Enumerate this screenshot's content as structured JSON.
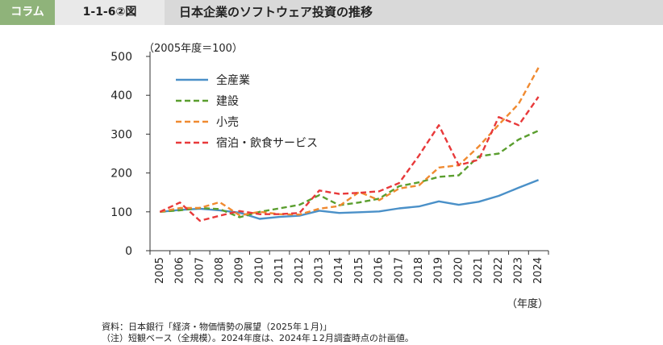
{
  "header": {
    "tag": "コラム",
    "figure_number": "1-1-6②図",
    "title": "日本企業のソフトウェア投資の推移"
  },
  "notes": {
    "source": "資料：日本銀行「経済・物価情勢の展望（2025年１月)」",
    "note": "（注）短観ベース（全規模）。2024年度は、2024年１2月調査時点の計画値。"
  },
  "chart_data": {
    "type": "line",
    "title": "",
    "unit_label": "（2005年度＝100）",
    "xlabel": "（年度）",
    "ylabel": "",
    "ylim": [
      0,
      500
    ],
    "yticks": [
      0,
      100,
      200,
      300,
      400,
      500
    ],
    "x": [
      "2005",
      "2006",
      "2007",
      "2008",
      "2009",
      "2010",
      "2011",
      "2012",
      "2013",
      "2014",
      "2015",
      "2016",
      "2017",
      "2018",
      "2019",
      "2020",
      "2021",
      "2022",
      "2023",
      "2024"
    ],
    "grid": false,
    "legend_position": "top-left",
    "series": [
      {
        "name": "全産業",
        "color": "#4a90c8",
        "dash": "solid",
        "values": [
          100,
          105,
          108,
          104,
          98,
          82,
          87,
          90,
          103,
          97,
          99,
          101,
          109,
          114,
          127,
          118,
          126,
          141,
          162,
          182
        ]
      },
      {
        "name": "建設",
        "color": "#5a9e2e",
        "dash": "dashed",
        "values": [
          100,
          104,
          110,
          107,
          86,
          100,
          109,
          118,
          143,
          117,
          124,
          134,
          166,
          176,
          190,
          194,
          243,
          250,
          286,
          309
        ]
      },
      {
        "name": "小売",
        "color": "#f08a30",
        "dash": "dashed",
        "values": [
          100,
          110,
          110,
          125,
          91,
          100,
          94,
          93,
          108,
          115,
          151,
          130,
          160,
          168,
          214,
          220,
          268,
          324,
          378,
          471
        ]
      },
      {
        "name": "宿泊・飲食サービス",
        "color": "#e8393a",
        "dash": "dashed",
        "values": [
          100,
          124,
          77,
          90,
          102,
          94,
          94,
          97,
          155,
          146,
          149,
          153,
          174,
          245,
          323,
          220,
          234,
          344,
          323,
          396
        ]
      }
    ]
  }
}
